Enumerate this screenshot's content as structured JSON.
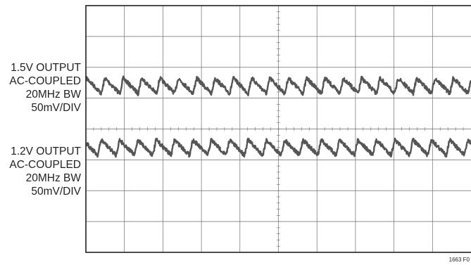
{
  "chart_data": {
    "type": "line",
    "title": "",
    "grid": true,
    "divisions": {
      "x": 10,
      "y": 8
    },
    "series": [
      {
        "channel": 1,
        "labels": [
          "1.5V OUTPUT",
          "AC-COUPLED",
          "20MHz BW",
          "50mV/DIV"
        ],
        "baseline_div": 2.6,
        "ripple_cycles": 21,
        "ripple_pp_div": 0.5,
        "color": "#555555"
      },
      {
        "channel": 2,
        "labels": [
          "1.2V OUTPUT",
          "AC-COUPLED",
          "20MHz BW",
          "50mV/DIV"
        ],
        "baseline_div": 4.6,
        "ripple_cycles": 21,
        "ripple_pp_div": 0.5,
        "color": "#555555"
      }
    ]
  },
  "figure_id": "1663 F0"
}
